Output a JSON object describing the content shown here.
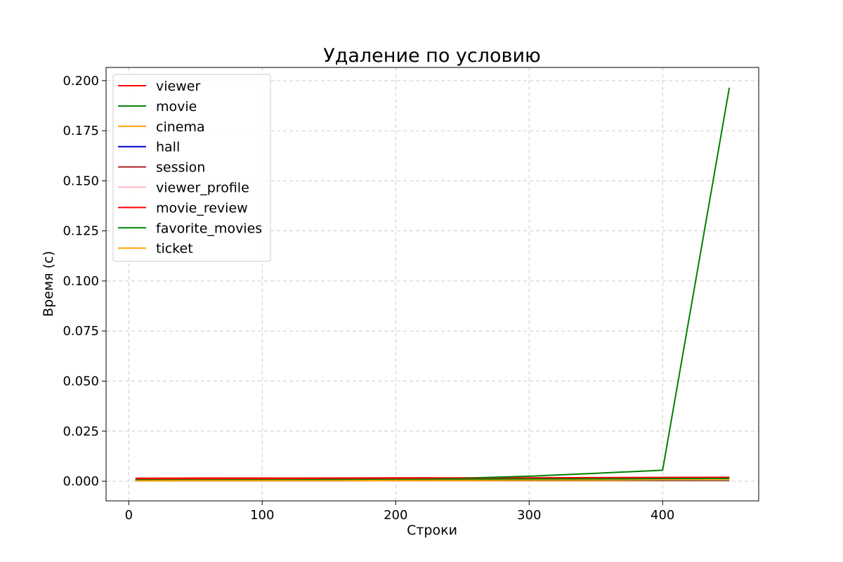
{
  "chart_data": {
    "type": "line",
    "title": "Удаление по условию",
    "xlabel": "Строки",
    "ylabel": "Время (с)",
    "xlim": [
      -17,
      472
    ],
    "ylim": [
      -0.0098,
      0.2066
    ],
    "xticks": [
      0,
      100,
      200,
      300,
      400
    ],
    "xtick_labels": [
      "0",
      "100",
      "200",
      "300",
      "400"
    ],
    "yticks": [
      0,
      0.025,
      0.05,
      0.075,
      0.1,
      0.125,
      0.15,
      0.175,
      0.2
    ],
    "ytick_labels": [
      "0.000",
      "0.025",
      "0.050",
      "0.075",
      "0.100",
      "0.125",
      "0.150",
      "0.175",
      "0.200"
    ],
    "grid": true,
    "legend_position": "top-left",
    "x": [
      5,
      50,
      100,
      150,
      200,
      250,
      300,
      350,
      400,
      450
    ],
    "series": [
      {
        "name": "viewer",
        "color": "#ff0000",
        "values": [
          0.0015,
          0.0016,
          0.0016,
          0.0016,
          0.0017,
          0.0017,
          0.0017,
          0.0018,
          0.0019,
          0.002
        ]
      },
      {
        "name": "movie",
        "color": "#008000",
        "values": [
          0.0004,
          0.0004,
          0.0005,
          0.0007,
          0.001,
          0.0015,
          0.0025,
          0.004,
          0.0055,
          0.1965
        ]
      },
      {
        "name": "cinema",
        "color": "#ffa500",
        "values": [
          0.0002,
          0.0002,
          0.0002,
          0.0003,
          0.0003,
          0.0003,
          0.0003,
          0.0003,
          0.0003,
          0.0003
        ]
      },
      {
        "name": "hall",
        "color": "#0000cd",
        "values": [
          0.0003,
          0.0003,
          0.0003,
          0.0003,
          0.0004,
          0.0004,
          0.0004,
          0.0004,
          0.0004,
          0.0004
        ]
      },
      {
        "name": "session",
        "color": "#b22222",
        "values": [
          0.0008,
          0.0008,
          0.0009,
          0.0009,
          0.001,
          0.001,
          0.0011,
          0.0011,
          0.0012,
          0.0012
        ]
      },
      {
        "name": "viewer_profile",
        "color": "#ffb6c1",
        "values": [
          0.0005,
          0.0005,
          0.0006,
          0.0006,
          0.0006,
          0.0007,
          0.0007,
          0.0007,
          0.0008,
          0.0008
        ]
      },
      {
        "name": "movie_review",
        "color": "#ff0000",
        "values": [
          0.001,
          0.0011,
          0.0011,
          0.0012,
          0.0012,
          0.0013,
          0.0013,
          0.0014,
          0.0015,
          0.0016
        ]
      },
      {
        "name": "favorite_movies",
        "color": "#008000",
        "values": [
          0.0006,
          0.0006,
          0.0007,
          0.0008,
          0.0009,
          0.001,
          0.0011,
          0.0012,
          0.0013,
          0.0014
        ]
      },
      {
        "name": "ticket",
        "color": "#ffa500",
        "values": [
          0.0002,
          0.0003,
          0.0003,
          0.0003,
          0.0004,
          0.0004,
          0.0005,
          0.0005,
          0.0006,
          0.0006
        ]
      }
    ]
  }
}
